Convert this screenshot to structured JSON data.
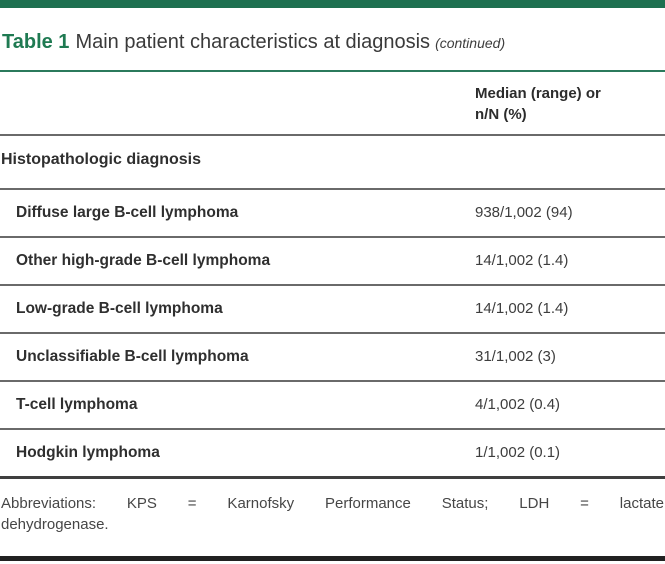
{
  "caption": {
    "label": "Table 1",
    "title": "Main patient characteristics at diagnosis",
    "continued": "(continued)"
  },
  "header": {
    "value_col_line1": "Median (range) or",
    "value_col_line2": "n/N (%)"
  },
  "section": {
    "title": "Histopathologic diagnosis"
  },
  "rows": [
    {
      "label": "Diffuse large B-cell lymphoma",
      "value": "938/1,002 (94)"
    },
    {
      "label": "Other high-grade B-cell lymphoma",
      "value": "14/1,002 (1.4)"
    },
    {
      "label": "Low-grade B-cell lymphoma",
      "value": "14/1,002 (1.4)"
    },
    {
      "label": "Unclassifiable B-cell lymphoma",
      "value": "31/1,002 (3)"
    },
    {
      "label": "T-cell lymphoma",
      "value": "4/1,002 (0.4)"
    },
    {
      "label": "Hodgkin lymphoma",
      "value": "1/1,002 (0.1)"
    }
  ],
  "footnote": {
    "line1": "Abbreviations: KPS = Karnofsky Performance Status; LDH = lactate",
    "line2": "dehydrogenase.",
    "full_text": "Abbreviations: KPS = Karnofsky Performance Status; LDH = lactate dehydrogenase."
  },
  "theme": {
    "accent-green": "#1e7050",
    "accent-green-text": "#1f7a52",
    "rule-green": "#2b7a5c",
    "rule-gray": "#6a6a6a",
    "rule-dark": "#3f3f3f",
    "bar-dark": "#212121",
    "text-dark": "#3a3a3a"
  }
}
